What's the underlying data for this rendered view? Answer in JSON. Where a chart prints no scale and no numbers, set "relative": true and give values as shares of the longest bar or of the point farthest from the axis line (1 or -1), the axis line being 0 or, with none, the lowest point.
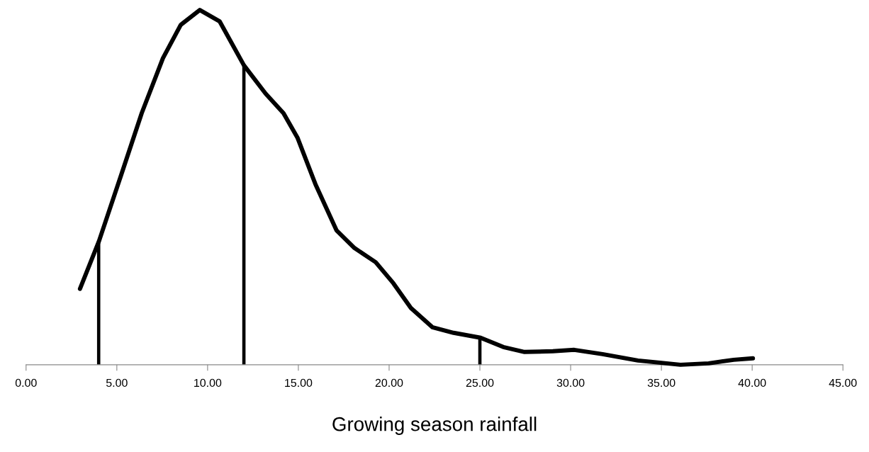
{
  "chart_data": {
    "type": "line",
    "relative": true,
    "xlabel": "Growing season rainfall",
    "xlim": [
      0,
      45
    ],
    "xticks": [
      {
        "value": 0,
        "label": "0.00"
      },
      {
        "value": 5,
        "label": "5.00"
      },
      {
        "value": 10,
        "label": "10.00"
      },
      {
        "value": 15,
        "label": "15.00"
      },
      {
        "value": 20,
        "label": "20.00"
      },
      {
        "value": 25,
        "label": "25.00"
      },
      {
        "value": 30,
        "label": "30.00"
      },
      {
        "value": 35,
        "label": "35.00"
      },
      {
        "value": 40,
        "label": "40.00"
      },
      {
        "value": 45,
        "label": "45.00"
      }
    ],
    "grid": false,
    "marker": "none",
    "line_style": "solid",
    "series": [
      {
        "color": "#000000",
        "x": [
          2.97,
          4.02,
          5.2,
          6.37,
          7.54,
          8.52,
          9.57,
          10.66,
          12.0,
          13.2,
          14.18,
          14.96,
          15.94,
          17.1,
          18.09,
          19.26,
          20.23,
          21.2,
          22.38,
          23.55,
          25.04,
          26.29,
          27.46,
          29.02,
          30.2,
          31.76,
          33.71,
          36.05,
          37.6,
          38.98,
          40.04
        ],
        "values": [
          0.214,
          0.349,
          0.529,
          0.709,
          0.864,
          0.958,
          1.0,
          0.968,
          0.844,
          0.764,
          0.709,
          0.639,
          0.509,
          0.379,
          0.329,
          0.289,
          0.23,
          0.16,
          0.106,
          0.09,
          0.076,
          0.05,
          0.036,
          0.038,
          0.042,
          0.03,
          0.012,
          0.0,
          0.004,
          0.014,
          0.018
        ]
      },
      {
        "type": "bar",
        "color": "#000000",
        "x": [
          4,
          12,
          25
        ],
        "values": [
          0.349,
          0.844,
          0.076
        ]
      }
    ]
  }
}
